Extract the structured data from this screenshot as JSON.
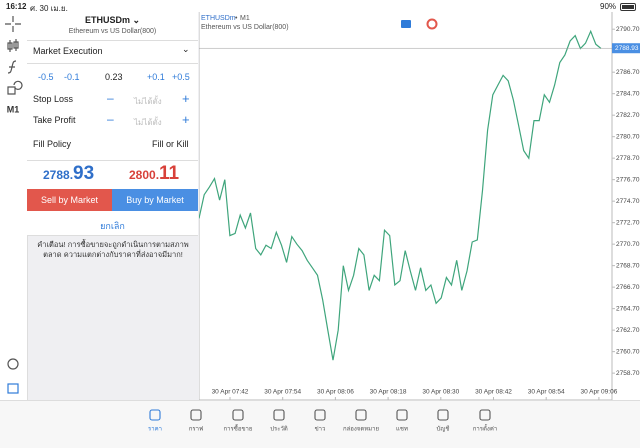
{
  "status_bar": {
    "time": "16:12",
    "date": "ศ. 30 เม.ย.",
    "battery": "90%"
  },
  "order_panel": {
    "symbol": "ETHUSDm",
    "description": "Ethereum vs US Dollar(800)",
    "execution": "Market Execution",
    "volume_steps": [
      "-0.5",
      "-0.1",
      "+0.1",
      "+0.5"
    ],
    "volume": 0.23,
    "stop_loss_label": "Stop Loss",
    "take_profit_label": "Take Profit",
    "placeholder": "ไม่ได้ตั้ง",
    "fill_policy_label": "Fill Policy",
    "fill_policy": "Fill or Kill",
    "bid": {
      "main": "2788.",
      "big": "93"
    },
    "ask": {
      "main": "2800.",
      "big": "11"
    },
    "sell": "Sell by Market",
    "buy": "Buy by Market",
    "cancel": "ยกเลิก",
    "warning": "คำเตือน! การซื้อขายจะถูกดำเนินการตามสภาพตลาด ความแตกต่างกับราคาที่ส่งอาจมีมาก!"
  },
  "chart": {
    "type": "line",
    "symbol": "ETHUSDm",
    "timeframe": "M1",
    "description": "Ethereum vs US Dollar(800)",
    "color": "#3fa57c",
    "values": [
      2773.1,
      2775.3,
      2776.0,
      2776.8,
      2774.8,
      2776.7,
      2771.5,
      2771.7,
      2773.4,
      2772.2,
      2773.6,
      2770.3,
      2769.7,
      2770.6,
      2770.3,
      2771.8,
      2770.6,
      2769.0,
      2771.4,
      2770.7,
      2770.1,
      2769.2,
      2768.5,
      2767.8,
      2765.5,
      2762.7,
      2759.9,
      2762.7,
      2768.7,
      2766.4,
      2767.8,
      2770.3,
      2769.7,
      2766.4,
      2767.8,
      2767.3,
      2772.0,
      2771.5,
      2766.9,
      2767.3,
      2770.1,
      2768.2,
      2766.4,
      2768.5,
      2766.4,
      2766.9,
      2765.2,
      2765.7,
      2767.6,
      2766.9,
      2769.2,
      2766.4,
      2768.2,
      2770.9,
      2771.1,
      2775.7,
      2781.3,
      2784.6,
      2785.5,
      2786.4,
      2785.9,
      2784.1,
      2781.8,
      2779.4,
      2778.7,
      2782.2,
      2782.2,
      2784.6,
      2783.9,
      2785.5,
      2787.6,
      2788.3,
      2789.6,
      2790.1,
      2788.9,
      2789.4,
      2790.5,
      2789.3,
      2788.9
    ],
    "ylim": [
      2756.2,
      2792.3
    ],
    "yticks": [
      {
        "value": 2758.7,
        "label": "2758.70"
      },
      {
        "value": 2760.7,
        "label": "2760.70"
      },
      {
        "value": 2762.7,
        "label": "2762.70"
      },
      {
        "value": 2764.7,
        "label": "2764.70"
      },
      {
        "value": 2766.7,
        "label": "2766.70"
      },
      {
        "value": 2768.7,
        "label": "2768.70"
      },
      {
        "value": 2770.7,
        "label": "2770.70"
      },
      {
        "value": 2772.7,
        "label": "2772.70"
      },
      {
        "value": 2774.7,
        "label": "2774.70"
      },
      {
        "value": 2776.7,
        "label": "2776.70"
      },
      {
        "value": 2778.7,
        "label": "2778.70"
      },
      {
        "value": 2780.7,
        "label": "2780.70"
      },
      {
        "value": 2782.7,
        "label": "2782.70"
      },
      {
        "value": 2784.7,
        "label": "2784.70"
      },
      {
        "value": 2786.7,
        "label": "2786.70"
      },
      {
        "value": 2790.7,
        "label": "2790.70"
      }
    ],
    "xticks": [
      "30 Apr 07:42",
      "30 Apr 07:54",
      "30 Apr 08:06",
      "30 Apr 08:18",
      "30 Apr 08:30",
      "30 Apr 08:42",
      "30 Apr 08:54",
      "30 Apr 09:06"
    ],
    "current_price": 2788.93
  },
  "tab_bar": {
    "tabs": [
      "ราคา",
      "กราฟ",
      "การซื้อขาย",
      "ประวัติ",
      "ข่าว",
      "กล่องจดหมาย",
      "แชท",
      "บัญชี",
      "การตั้งค่า"
    ]
  }
}
